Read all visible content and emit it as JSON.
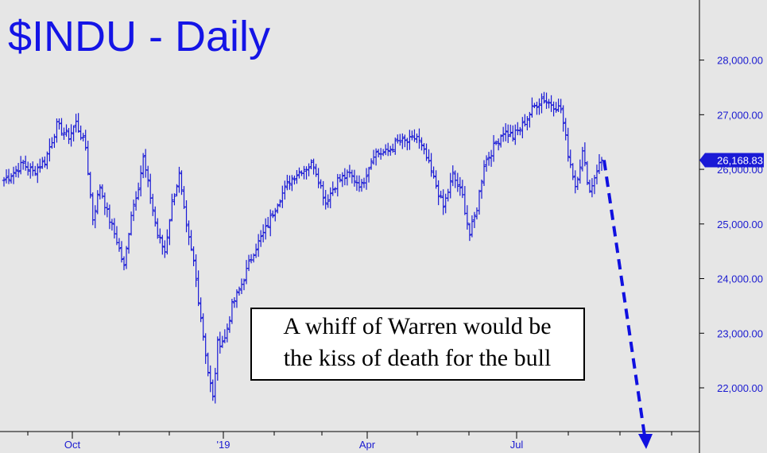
{
  "chart_data": {
    "type": "ohlc",
    "title": "$INDU - Daily",
    "y_ticks": [
      "22,000.00",
      "23,000.00",
      "24,000.00",
      "25,000.00",
      "26,000.00",
      "27,000.00",
      "28,000.00"
    ],
    "y_tick_values": [
      22000,
      23000,
      24000,
      25000,
      26000,
      27000,
      28000
    ],
    "ylim": [
      21200,
      29100
    ],
    "x_ticks": [
      "Oct",
      "'19",
      "Apr",
      "Jul"
    ],
    "last_value_label": "26,168.83",
    "last_value": 26168.83,
    "annotation": [
      "A whiff of Warren would be",
      "the kiss of death for the bull"
    ],
    "projection": {
      "from": 26168.83,
      "to": 21000,
      "style": "dashed",
      "direction": "down"
    },
    "grid": false,
    "anchors": [
      {
        "d": 0,
        "v": 25800
      },
      {
        "d": 4,
        "v": 25950
      },
      {
        "d": 8,
        "v": 26100
      },
      {
        "d": 12,
        "v": 25950
      },
      {
        "d": 17,
        "v": 26150
      },
      {
        "d": 22,
        "v": 26800
      },
      {
        "d": 27,
        "v": 26600
      },
      {
        "d": 30,
        "v": 26850
      },
      {
        "d": 34,
        "v": 26400
      },
      {
        "d": 37,
        "v": 25100
      },
      {
        "d": 40,
        "v": 25700
      },
      {
        "d": 43,
        "v": 25200
      },
      {
        "d": 47,
        "v": 24700
      },
      {
        "d": 50,
        "v": 24200
      },
      {
        "d": 53,
        "v": 25200
      },
      {
        "d": 56,
        "v": 25700
      },
      {
        "d": 58,
        "v": 26200
      },
      {
        "d": 61,
        "v": 25500
      },
      {
        "d": 64,
        "v": 24800
      },
      {
        "d": 67,
        "v": 24500
      },
      {
        "d": 70,
        "v": 25400
      },
      {
        "d": 73,
        "v": 25900
      },
      {
        "d": 76,
        "v": 24900
      },
      {
        "d": 79,
        "v": 24300
      },
      {
        "d": 82,
        "v": 23300
      },
      {
        "d": 85,
        "v": 22300
      },
      {
        "d": 87,
        "v": 21800
      },
      {
        "d": 89,
        "v": 22800
      },
      {
        "d": 92,
        "v": 22900
      },
      {
        "d": 95,
        "v": 23500
      },
      {
        "d": 99,
        "v": 23900
      },
      {
        "d": 104,
        "v": 24500
      },
      {
        "d": 109,
        "v": 24900
      },
      {
        "d": 114,
        "v": 25400
      },
      {
        "d": 119,
        "v": 25800
      },
      {
        "d": 124,
        "v": 26000
      },
      {
        "d": 129,
        "v": 26100
      },
      {
        "d": 134,
        "v": 25400
      },
      {
        "d": 139,
        "v": 25800
      },
      {
        "d": 144,
        "v": 25900
      },
      {
        "d": 149,
        "v": 25700
      },
      {
        "d": 154,
        "v": 26300
      },
      {
        "d": 159,
        "v": 26300
      },
      {
        "d": 164,
        "v": 26500
      },
      {
        "d": 168,
        "v": 26500
      },
      {
        "d": 172,
        "v": 26600
      },
      {
        "d": 176,
        "v": 26200
      },
      {
        "d": 180,
        "v": 25700
      },
      {
        "d": 183,
        "v": 25300
      },
      {
        "d": 187,
        "v": 25900
      },
      {
        "d": 191,
        "v": 25500
      },
      {
        "d": 194,
        "v": 24800
      },
      {
        "d": 197,
        "v": 25300
      },
      {
        "d": 200,
        "v": 26100
      },
      {
        "d": 204,
        "v": 26400
      },
      {
        "d": 208,
        "v": 26700
      },
      {
        "d": 212,
        "v": 26600
      },
      {
        "d": 216,
        "v": 26800
      },
      {
        "d": 220,
        "v": 27100
      },
      {
        "d": 224,
        "v": 27300
      },
      {
        "d": 228,
        "v": 27200
      },
      {
        "d": 232,
        "v": 27100
      },
      {
        "d": 235,
        "v": 26300
      },
      {
        "d": 238,
        "v": 25700
      },
      {
        "d": 241,
        "v": 26300
      },
      {
        "d": 244,
        "v": 25600
      },
      {
        "d": 247,
        "v": 26000
      },
      {
        "d": 249,
        "v": 26168.83
      }
    ]
  }
}
